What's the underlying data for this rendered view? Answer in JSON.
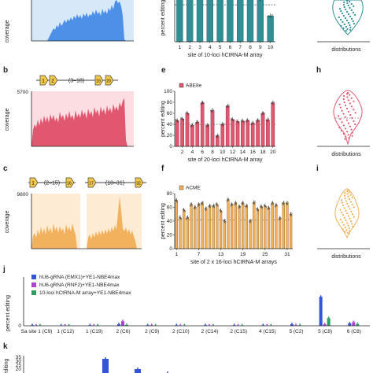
{
  "colors": {
    "blue": "#4d90e8",
    "blue_bg": "#d7e9f9",
    "teal": "#2f8f95",
    "red": "#e0576f",
    "red_bg": "#fbdde2",
    "orange": "#f2b15d",
    "orange_bg": "#fdebd3",
    "purple": "#b040d8",
    "green": "#2aa05f",
    "darkblue": "#3454d8",
    "dot": "#555555"
  },
  "panel_labels": {
    "b": "b",
    "c": "c",
    "e": "e",
    "f": "f",
    "h": "h",
    "i": "i",
    "j": "j",
    "k": "k"
  },
  "panel_a": {
    "ylabel": "coverage"
  },
  "panel_b": {
    "ylabel": "coverage",
    "ymax": "5700",
    "array_mid": "(3–18)",
    "g1": "1",
    "g2": "2",
    "g19": "19",
    "g20": "20"
  },
  "panel_c": {
    "ylabel": "coverage",
    "ymax": "9800",
    "left_mid": "(2–15)",
    "right_mid": "(18–31)",
    "g1": "1",
    "g16": "16",
    "g17": "17",
    "g32": "32"
  },
  "panel_h": {
    "xlabel": "distributions"
  },
  "panel_i": {
    "xlabel": "distributions"
  },
  "top_right": {
    "xlabel": "distributions"
  },
  "chart_data": [
    {
      "type": "bar",
      "xlabel": "site of 10-loci hCtRNA-M array",
      "ylabel": "percent editing",
      "ylim": [
        0,
        65
      ],
      "x_ticks": [
        "1",
        "2",
        "3",
        "4",
        "5",
        "6",
        "7",
        "8",
        "9",
        "10"
      ],
      "y_ticks": [
        "60"
      ],
      "categories": [
        "1",
        "2",
        "3",
        "4",
        "5",
        "6",
        "7",
        "8",
        "9",
        "10"
      ],
      "values": [
        60,
        62,
        61,
        60,
        61,
        62,
        60,
        61,
        58,
        35
      ],
      "reference_line": 50
    },
    {
      "type": "bar",
      "xlabel": "site of 20-loci hCtRNA-M array",
      "ylabel": "percent editing",
      "ylim": [
        0,
        100
      ],
      "x_ticks": [
        "2",
        "4",
        "6",
        "8",
        "10",
        "12",
        "14",
        "16",
        "18",
        "20"
      ],
      "y_ticks": [
        "0",
        "20",
        "40",
        "60",
        "80",
        "100"
      ],
      "series": [
        {
          "name": "ABE8e",
          "values": [
            47,
            50,
            60,
            38,
            44,
            79,
            38,
            65,
            19,
            40,
            73,
            49,
            45,
            46,
            47,
            42,
            47,
            60,
            48,
            79
          ]
        }
      ],
      "reference_line": 40
    },
    {
      "type": "bar",
      "xlabel": "site of 2 x 16-loci hCtRNA-M arrays",
      "ylabel": "percent editing",
      "ylim": [
        0,
        80
      ],
      "x_ticks": [
        "1",
        "7",
        "13",
        "19",
        "25",
        "31"
      ],
      "y_ticks": [
        "0",
        "20",
        "40",
        "60",
        "80"
      ],
      "series": [
        {
          "name": "ACME",
          "values": [
            70,
            45,
            56,
            45,
            64,
            60,
            64,
            66,
            58,
            62,
            62,
            64,
            55,
            40,
            71,
            64,
            66,
            61,
            66,
            62,
            40,
            67,
            57,
            61,
            62,
            59,
            66,
            63,
            44,
            66,
            66,
            50
          ]
        }
      ],
      "reference_line": 42
    },
    {
      "type": "bar",
      "ylabel": "percent editing",
      "y_ticks": [
        "0",
        "1.5"
      ],
      "categories": [
        "Sa site 1 (C9)",
        "1 (C12)",
        "1 (C19)",
        "2 (C6)",
        "2 (C9)",
        "2 (C10)",
        "2 (C14)",
        "2 (C15)",
        "4 (C15)",
        "5 (C2)",
        "5 (C8)",
        "6 (C8)"
      ],
      "series": [
        {
          "name": "hU6-gRNA (EMX1)+YE1-NBE4max",
          "values": [
            0.02,
            0.01,
            0.02,
            0.05,
            0.02,
            0.02,
            0.02,
            0.02,
            0.02,
            0.05,
            0.95,
            0.08
          ]
        },
        {
          "name": "hU6-gRNA (RNF2)+YE1-NBE4max",
          "values": [
            0.01,
            0.01,
            0.01,
            0.15,
            0.02,
            0.01,
            0.01,
            0.01,
            0.01,
            0.02,
            0.05,
            0.12
          ]
        },
        {
          "name": "10-loci hCtRNA-M array+YE1-NBE4max",
          "values": [
            0.01,
            0.01,
            0.01,
            0.03,
            0.01,
            0.01,
            0.01,
            0.01,
            0.01,
            0.02,
            0.25,
            0.06
          ]
        }
      ]
    },
    {
      "type": "bar",
      "ylabel": "editing",
      "y_ticks": [
        "35",
        "30",
        "25",
        "20"
      ],
      "values": [
        33,
        20,
        15,
        13,
        11
      ]
    }
  ]
}
